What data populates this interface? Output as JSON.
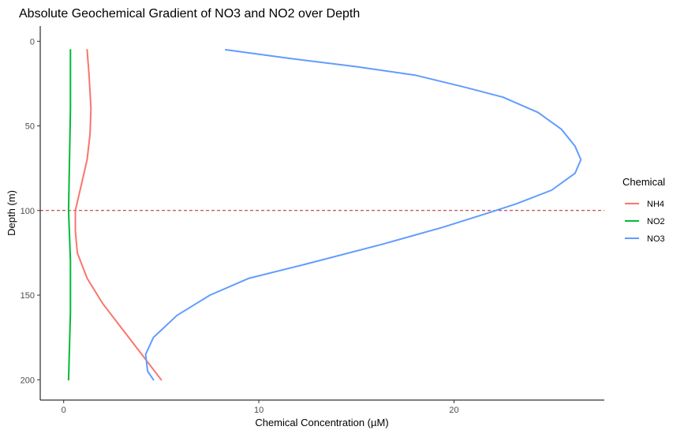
{
  "chart_data": {
    "type": "line",
    "title": "Absolute Geochemical Gradient of NO3 and NO2 over Depth",
    "xlabel": "Chemical Concentration (µM)",
    "ylabel": "Depth (m)",
    "xlim": [
      -1.2,
      27.7
    ],
    "ylim": [
      212,
      -9
    ],
    "y_reversed": true,
    "xticks": [
      0,
      10,
      20
    ],
    "yticks": [
      0,
      50,
      100,
      150,
      200
    ],
    "grid": false,
    "legend": {
      "title": "Chemical",
      "position": "right"
    },
    "reference_lines": [
      {
        "axis": "y",
        "value": 100,
        "style": "dashed",
        "color": "#b22222"
      }
    ],
    "series": [
      {
        "name": "NH4",
        "color": "#F8766D",
        "points": [
          [
            1.2,
            5
          ],
          [
            1.3,
            20
          ],
          [
            1.4,
            40
          ],
          [
            1.35,
            55
          ],
          [
            1.2,
            70
          ],
          [
            0.9,
            85
          ],
          [
            0.6,
            100
          ],
          [
            0.6,
            112
          ],
          [
            0.7,
            125
          ],
          [
            1.2,
            140
          ],
          [
            2.0,
            155
          ],
          [
            3.0,
            170
          ],
          [
            4.0,
            185
          ],
          [
            5.0,
            200
          ]
        ]
      },
      {
        "name": "NO2",
        "color": "#00BA38",
        "points": [
          [
            0.35,
            5
          ],
          [
            0.35,
            40
          ],
          [
            0.3,
            70
          ],
          [
            0.25,
            100
          ],
          [
            0.35,
            130
          ],
          [
            0.35,
            160
          ],
          [
            0.3,
            180
          ],
          [
            0.25,
            200
          ]
        ]
      },
      {
        "name": "NO3",
        "color": "#619CFF",
        "points": [
          [
            8.3,
            5
          ],
          [
            11.5,
            10
          ],
          [
            15,
            15
          ],
          [
            18,
            20
          ],
          [
            20.5,
            27
          ],
          [
            22.5,
            33
          ],
          [
            24.3,
            42
          ],
          [
            25.5,
            52
          ],
          [
            26.2,
            62
          ],
          [
            26.5,
            70
          ],
          [
            26.2,
            78
          ],
          [
            25,
            88
          ],
          [
            23.2,
            96
          ],
          [
            21.6,
            102
          ],
          [
            19.4,
            110
          ],
          [
            16.3,
            120
          ],
          [
            12.3,
            132
          ],
          [
            9.5,
            140
          ],
          [
            7.5,
            150
          ],
          [
            5.8,
            162
          ],
          [
            4.6,
            175
          ],
          [
            4.2,
            185
          ],
          [
            4.3,
            195
          ],
          [
            4.6,
            200
          ]
        ]
      }
    ]
  }
}
